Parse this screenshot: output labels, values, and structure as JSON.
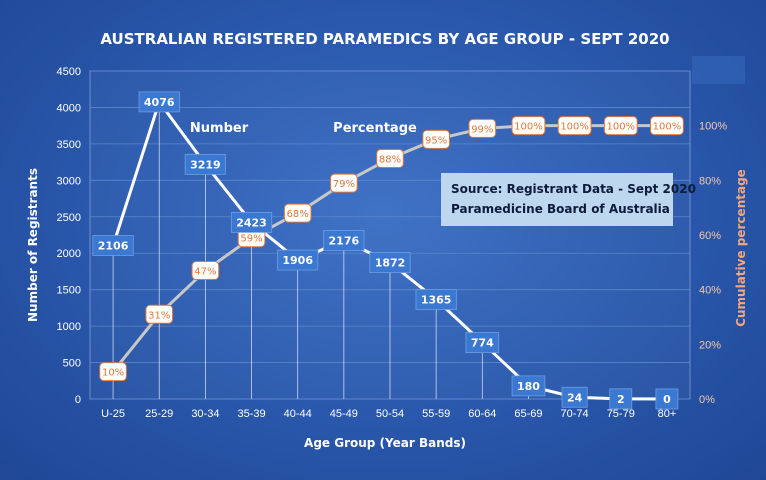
{
  "chart_data": {
    "type": "line",
    "title": "AUSTRALIAN REGISTERED PARAMEDICS BY AGE GROUP - SEPT 2020",
    "xlabel": "Age Group (Year Bands)",
    "ylabel": "Number of Registrants",
    "y2label": "Cumulative percentage",
    "categories": [
      "U-25",
      "25-29",
      "30-34",
      "35-39",
      "40-44",
      "45-49",
      "50-54",
      "55-59",
      "60-64",
      "65-69",
      "70-74",
      "75-79",
      "80+"
    ],
    "ylim": [
      0,
      4500
    ],
    "yticks": [
      0,
      500,
      1000,
      1500,
      2000,
      2500,
      3000,
      3500,
      4000,
      4500
    ],
    "y2lim": [
      0,
      120
    ],
    "y2ticks": [
      "0%",
      "20%",
      "40%",
      "60%",
      "80%",
      "100%"
    ],
    "y2tick_values": [
      0,
      20,
      40,
      60,
      80,
      100
    ],
    "series": [
      {
        "name": "Number",
        "values": [
          2106,
          4076,
          3219,
          2423,
          1906,
          2176,
          1872,
          1365,
          774,
          180,
          24,
          2,
          0
        ],
        "labels": [
          "2106",
          "4076",
          "3219",
          "2423",
          "1906",
          "2176",
          "1872",
          "1365",
          "774",
          "180",
          "24",
          "2",
          "0"
        ]
      },
      {
        "name": "Percentage",
        "values": [
          10,
          31,
          47,
          59,
          68,
          79,
          88,
          95,
          99,
          100,
          100,
          100,
          100
        ],
        "labels": [
          "10%",
          "31%",
          "47%",
          "59%",
          "68%",
          "79%",
          "88%",
          "95%",
          "99%",
          "100%",
          "100%",
          "100%",
          "100%"
        ]
      }
    ],
    "annotation": [
      "Source: Registrant Data - Sept 2020",
      "Paramedicine Board of Australia"
    ],
    "colors": {
      "number_line": "#ffffff",
      "percent_line": "#c8c8c8",
      "number_label_bg": "#3a78d2",
      "percent_label_bg": "#ffffff",
      "percent_label_text": "#e0773a",
      "y2_axis_text": "#f4a77d",
      "source_box": "#bdd7ee"
    },
    "grid": true
  }
}
